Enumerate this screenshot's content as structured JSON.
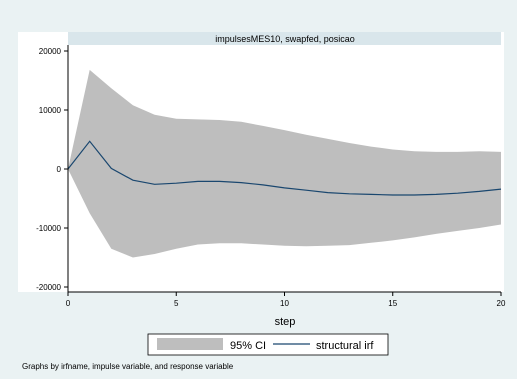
{
  "chart_data": {
    "type": "area",
    "panel_title": "impulsesMES10, swapfed, posicao",
    "xlabel": "step",
    "ylabel": "",
    "x": [
      0,
      1,
      2,
      3,
      4,
      5,
      6,
      7,
      8,
      9,
      10,
      11,
      12,
      13,
      14,
      15,
      16,
      17,
      18,
      19,
      20
    ],
    "xlim": [
      0,
      20
    ],
    "ylim": [
      -20000,
      20000
    ],
    "xticks": [
      0,
      5,
      10,
      15,
      20
    ],
    "yticks": [
      -20000,
      -10000,
      0,
      10000,
      20000
    ],
    "series": [
      {
        "name": "structural irf",
        "kind": "line",
        "color": "#1a476f",
        "values": [
          0,
          4700,
          100,
          -1900,
          -2600,
          -2400,
          -2100,
          -2100,
          -2300,
          -2700,
          -3200,
          -3600,
          -4000,
          -4200,
          -4300,
          -4400,
          -4400,
          -4300,
          -4100,
          -3800,
          -3400
        ]
      },
      {
        "name": "95% CI",
        "kind": "band",
        "color": "#bebebe",
        "lower": [
          0,
          -7500,
          -13500,
          -15000,
          -14400,
          -13500,
          -12800,
          -12600,
          -12600,
          -12800,
          -13000,
          -13100,
          -13000,
          -12900,
          -12500,
          -12100,
          -11600,
          -11000,
          -10500,
          -10000,
          -9400
        ],
        "upper": [
          0,
          16800,
          13700,
          10800,
          9200,
          8500,
          8400,
          8300,
          8000,
          7300,
          6600,
          5800,
          5100,
          4400,
          3800,
          3300,
          3000,
          2900,
          2900,
          3000,
          2900
        ]
      }
    ],
    "legend": {
      "placement": "bottom",
      "items": [
        "95% CI",
        "structural irf"
      ]
    },
    "note": "Graphs by irfname, impulse variable, and response variable",
    "grid": false,
    "colors": {
      "background": "#eaf2f3",
      "plot_background": "#ffffff",
      "title_strip": "#d9e6eb",
      "band": "#bebebe",
      "line": "#1a476f"
    }
  }
}
